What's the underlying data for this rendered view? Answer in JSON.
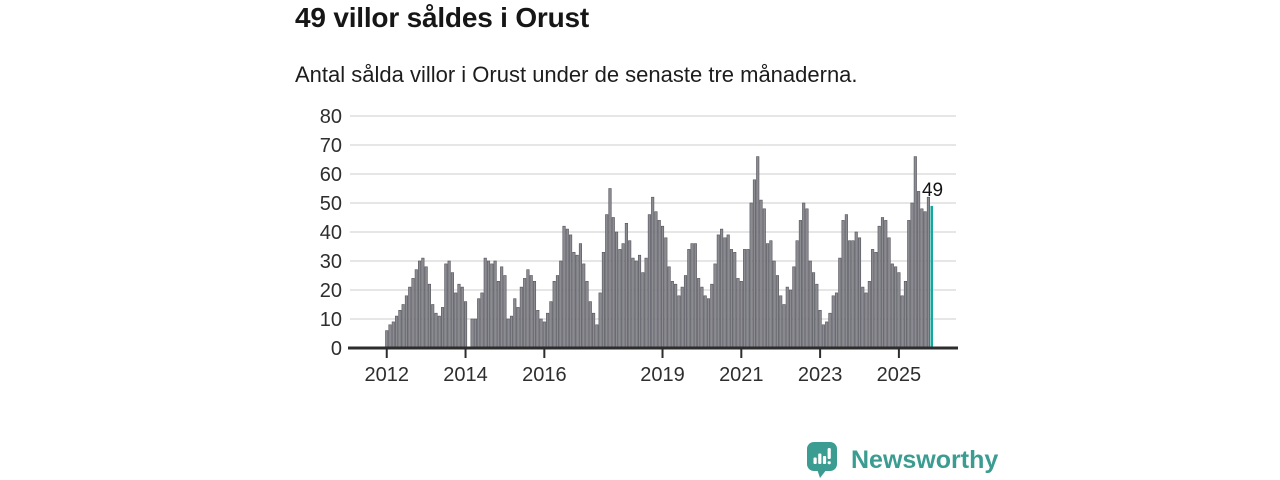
{
  "header": {
    "title": "49 villor såldes i Orust",
    "subtitle": "Antal sålda villor i Orust under de senaste tre månaderna."
  },
  "chart_data": {
    "type": "bar",
    "title": "49 villor såldes i Orust",
    "subtitle": "Antal sålda villor i Orust under de senaste tre månaderna.",
    "x_start": "2012-01",
    "x_interval": "monthly",
    "ylim": [
      0,
      80
    ],
    "ytick_step": 10,
    "yticks": [
      0,
      10,
      20,
      30,
      40,
      50,
      60,
      70,
      80
    ],
    "grid": "horizontal",
    "legend": "none",
    "bar_color": "#8b8b92",
    "bar_stroke": "#54545b",
    "highlight_color": "#12a79e",
    "highlight_last": true,
    "highlight_value": 49,
    "annotation": {
      "text": "49",
      "target_index": 166
    },
    "xticks": [
      {
        "label": "2012",
        "index": 0
      },
      {
        "label": "2014",
        "index": 24
      },
      {
        "label": "2016",
        "index": 48
      },
      {
        "label": "2019",
        "index": 84
      },
      {
        "label": "2021",
        "index": 108
      },
      {
        "label": "2023",
        "index": 132
      },
      {
        "label": "2025",
        "index": 156
      }
    ],
    "values": [
      6,
      8,
      9,
      11,
      13,
      15,
      18,
      21,
      24,
      27,
      30,
      31,
      28,
      22,
      15,
      12,
      11,
      14,
      29,
      30,
      26,
      19,
      22,
      21,
      16,
      0,
      10,
      10,
      17,
      19,
      31,
      30,
      29,
      30,
      23,
      28,
      25,
      10,
      11,
      17,
      14,
      21,
      24,
      27,
      25,
      23,
      13,
      10,
      9,
      12,
      16,
      23,
      25,
      30,
      42,
      41,
      39,
      33,
      32,
      36,
      29,
      23,
      16,
      12,
      8,
      19,
      33,
      46,
      55,
      45,
      40,
      34,
      36,
      43,
      37,
      31,
      30,
      32,
      26,
      31,
      46,
      52,
      47,
      44,
      42,
      38,
      28,
      23,
      22,
      18,
      21,
      25,
      34,
      36,
      36,
      24,
      21,
      18,
      17,
      22,
      29,
      39,
      41,
      38,
      39,
      34,
      33,
      24,
      23,
      34,
      34,
      50,
      58,
      66,
      51,
      48,
      36,
      37,
      30,
      25,
      18,
      15,
      21,
      20,
      28,
      37,
      44,
      50,
      48,
      30,
      26,
      22,
      13,
      8,
      9,
      12,
      18,
      19,
      31,
      44,
      46,
      37,
      37,
      40,
      38,
      21,
      19,
      23,
      34,
      33,
      42,
      45,
      44,
      38,
      29,
      28,
      26,
      18,
      23,
      44,
      50,
      66,
      54,
      48,
      47,
      52,
      49
    ]
  },
  "footer": {
    "brand": "Newsworthy",
    "brand_color": "#3b9c91",
    "logo_icon": "speech-bubble-bar-chart-icon"
  }
}
